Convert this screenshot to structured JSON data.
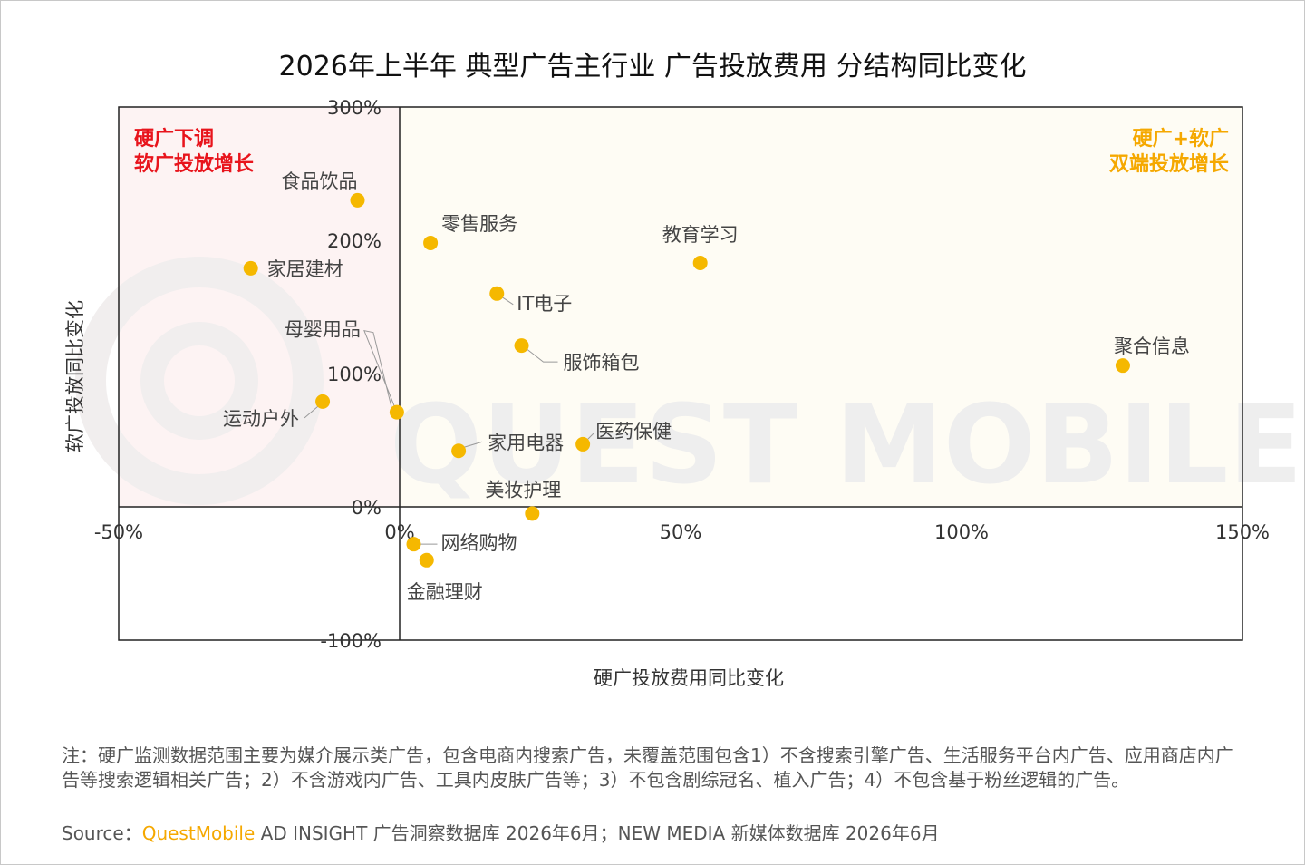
{
  "title": "2026年上半年 典型广告主行业 广告投放费用 分结构同比变化",
  "quadrants": {
    "top_left": [
      "硬广下调",
      "软广投放增长"
    ],
    "top_right": [
      "硬广+软广",
      "双端投放增长"
    ]
  },
  "watermark": "QUEST MOBILE",
  "note": "注：硬广监测数据范围主要为媒介展示类广告，包含电商内搜索广告，未覆盖范围包含1）不含搜索引擎广告、生活服务平台内广告、应用商店内广告等搜索逻辑相关广告；2）不含游戏内广告、工具内皮肤广告等；3）不包含剧综冠名、植入广告；4）不包含基于粉丝逻辑的广告。",
  "source": {
    "label": "Source：",
    "brand": "QuestMobile",
    "rest": " AD INSIGHT 广告洞察数据库 2026年6月；NEW MEDIA 新媒体数据库 2026年6月"
  },
  "colors": {
    "point": "#f5b800",
    "top_left_bg": "#fdf3f3",
    "top_right_bg": "#fefcf4",
    "top_left_text": "#e8141c",
    "top_right_text": "#f5a800"
  },
  "chart_data": {
    "type": "scatter",
    "xlabel": "硬广投放费用同比变化",
    "ylabel": "软广投放同比变化",
    "xlim": [
      -0.5,
      1.5
    ],
    "ylim": [
      -1.0,
      3.0
    ],
    "x_ticks": [
      "-50%",
      "0%",
      "50%",
      "100%",
      "150%"
    ],
    "y_ticks": [
      "-100%",
      "0%",
      "100%",
      "200%",
      "300%"
    ],
    "grid": false,
    "legend": "none",
    "points": [
      {
        "label": "食品饮品",
        "x": -0.075,
        "y": 2.3
      },
      {
        "label": "零售服务",
        "x": 0.055,
        "y": 1.98
      },
      {
        "label": "家居建材",
        "x": -0.265,
        "y": 1.79
      },
      {
        "label": "教育学习",
        "x": 0.535,
        "y": 1.83
      },
      {
        "label": "IT电子",
        "x": 0.173,
        "y": 1.6
      },
      {
        "label": "母婴用品",
        "x": -0.005,
        "y": 0.71
      },
      {
        "label": "服饰箱包",
        "x": 0.217,
        "y": 1.21
      },
      {
        "label": "聚合信息",
        "x": 1.287,
        "y": 1.06
      },
      {
        "label": "运动户外",
        "x": -0.137,
        "y": 0.79
      },
      {
        "label": "家用电器",
        "x": 0.105,
        "y": 0.42
      },
      {
        "label": "医药保健",
        "x": 0.326,
        "y": 0.47
      },
      {
        "label": "美妆护理",
        "x": 0.236,
        "y": -0.05
      },
      {
        "label": "网络购物",
        "x": 0.025,
        "y": -0.28
      },
      {
        "label": "金融理财",
        "x": 0.048,
        "y": -0.4
      }
    ]
  }
}
